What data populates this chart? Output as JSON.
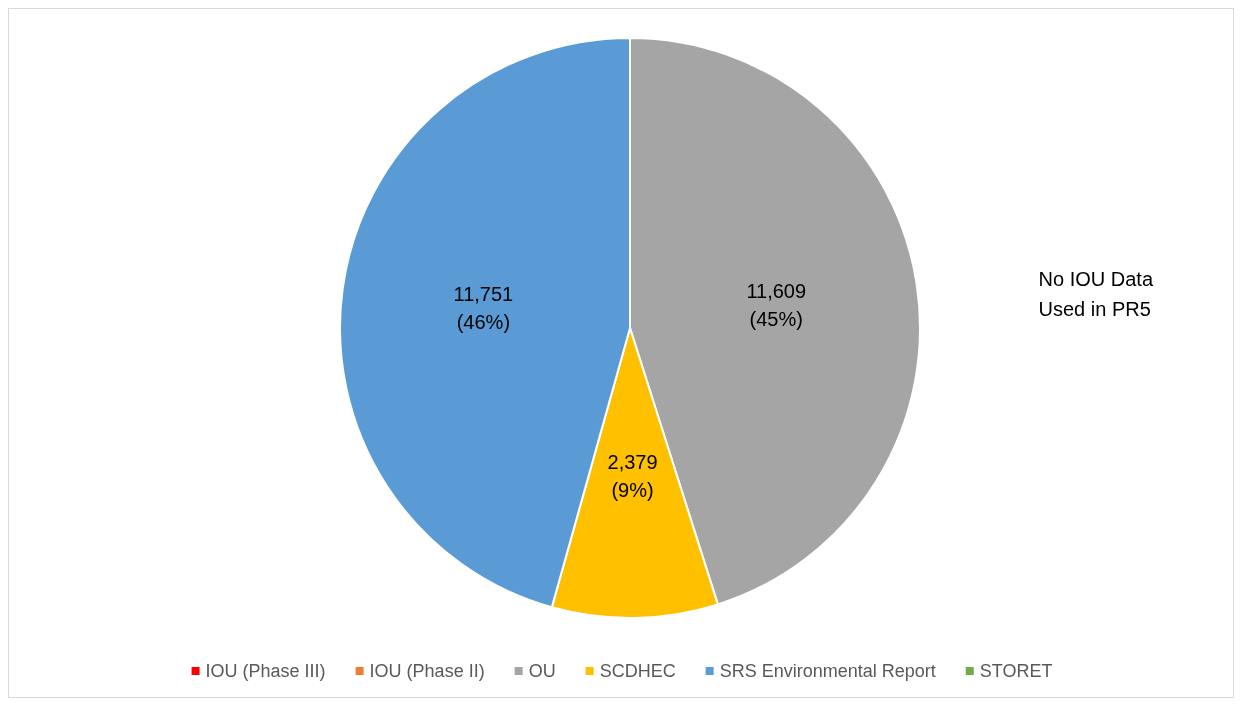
{
  "chart_data": {
    "type": "pie",
    "categories": [
      "IOU (Phase III)",
      "IOU (Phase II)",
      "OU",
      "SCDHEC",
      "SRS Environmental Report",
      "STORET"
    ],
    "values": [
      0,
      0,
      11609,
      2379,
      11751,
      0
    ],
    "colors": [
      "#ff0000",
      "#ed7d31",
      "#a5a5a5",
      "#ffc000",
      "#5b9bd5",
      "#70ad47"
    ],
    "value_labels": [
      null,
      null,
      "11,609\n(45%)",
      "2,379\n(9%)",
      "11,751\n(46%)",
      null
    ],
    "legend": "bottom",
    "annotations": [
      "No IOU Data\nUsed in PR5"
    ]
  }
}
